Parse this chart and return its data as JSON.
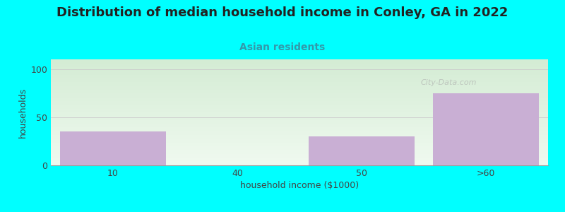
{
  "title": "Distribution of median household income in Conley, GA in 2022",
  "subtitle": "Asian residents",
  "xlabel": "household income ($1000)",
  "ylabel": "households",
  "categories": [
    "10",
    "40",
    "50",
    ">60"
  ],
  "values": [
    35,
    0,
    30,
    75
  ],
  "bar_color": "#c9afd4",
  "bar_edgecolor": "#c9afd4",
  "ylim": [
    0,
    110
  ],
  "yticks": [
    0,
    50,
    100
  ],
  "background_color": "#00FFFF",
  "plot_bg_color_topleft": "#d4ecd4",
  "plot_bg_color_topright": "#ddeedd",
  "plot_bg_color_bottom": "#e8f5ee",
  "title_fontsize": 13,
  "subtitle_fontsize": 10,
  "subtitle_color": "#3399aa",
  "axis_label_fontsize": 9,
  "tick_label_fontsize": 9,
  "watermark": "City-Data.com"
}
